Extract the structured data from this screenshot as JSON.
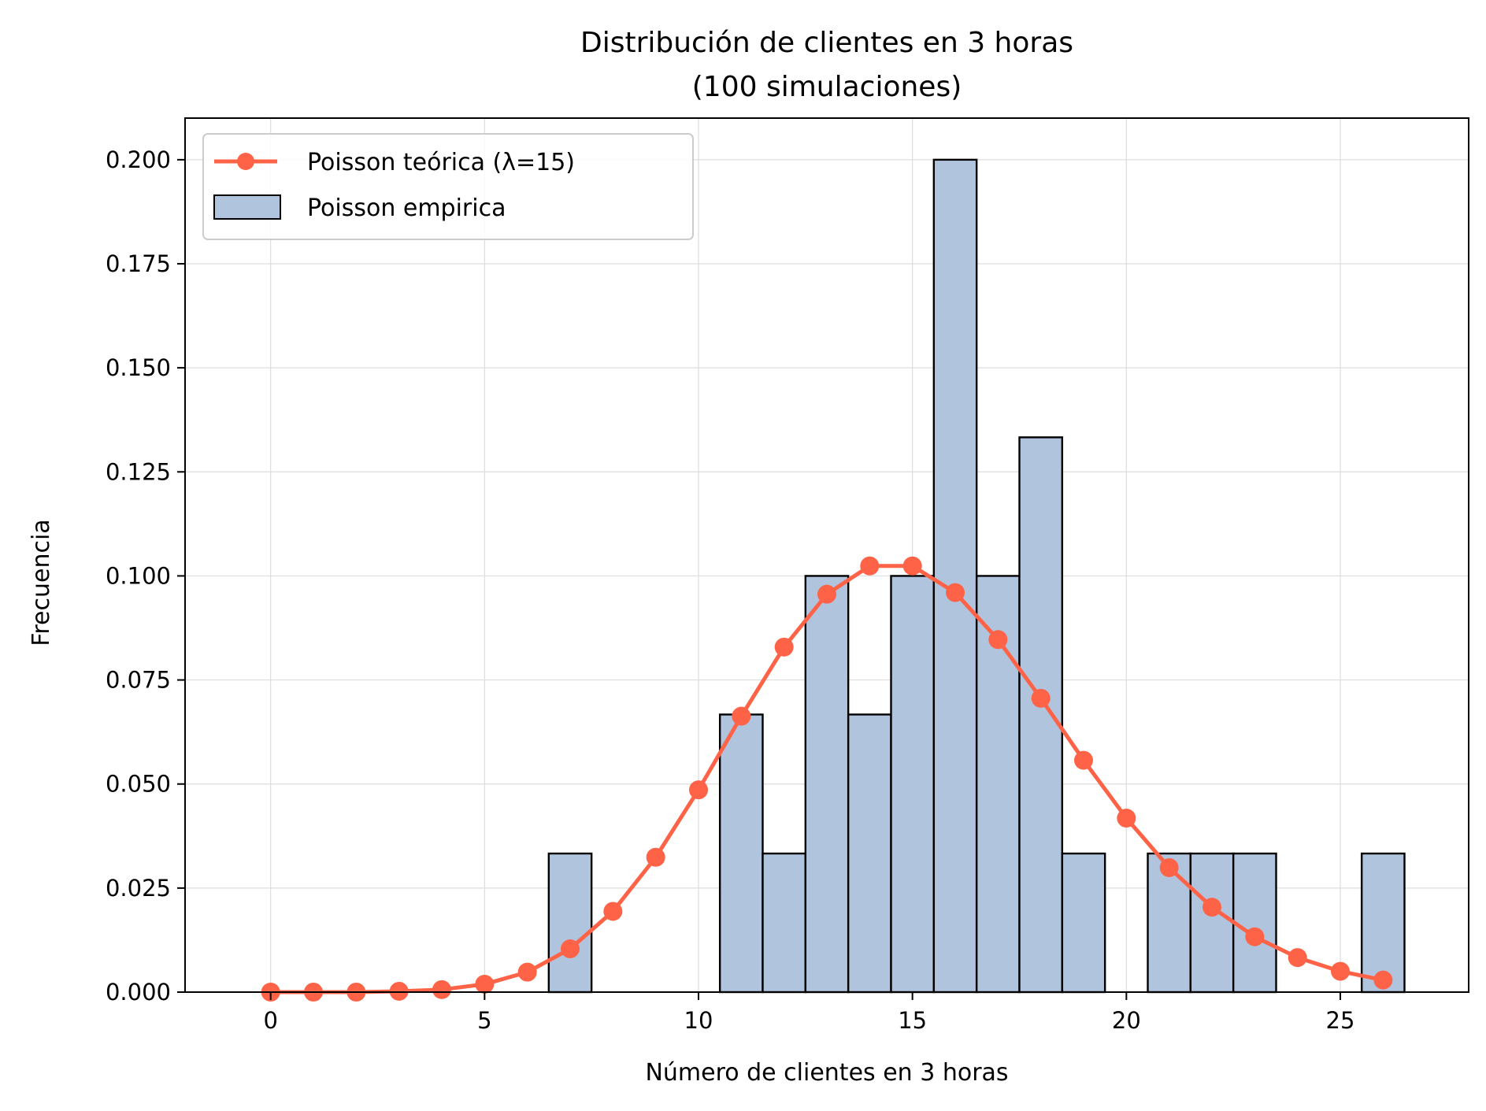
{
  "chart_data": {
    "type": "bar",
    "title": "Distribución de clientes en 3 horas\n(100 simulaciones)",
    "xlabel": "Número de clientes en 3 horas",
    "ylabel": "Frecuencia",
    "xlim": [
      -2.0,
      28.0
    ],
    "ylim": [
      0,
      0.21
    ],
    "xticks": [
      0,
      5,
      10,
      15,
      20,
      25
    ],
    "yticks": [
      0.0,
      0.025,
      0.05,
      0.075,
      0.1,
      0.125,
      0.15,
      0.175,
      0.2
    ],
    "xtick_labels": [
      "0",
      "5",
      "10",
      "15",
      "20",
      "25"
    ],
    "ytick_labels": [
      "0.000",
      "0.025",
      "0.050",
      "0.075",
      "0.100",
      "0.125",
      "0.150",
      "0.175",
      "0.200"
    ],
    "grid": true,
    "legend_position": "top-left",
    "colors": {
      "bars": "#b0c4de",
      "bar_edge": "#000000",
      "line": "#ff6347"
    },
    "series": [
      {
        "name": "Poisson empirica",
        "kind": "histogram",
        "x": [
          7,
          11,
          12,
          13,
          14,
          15,
          16,
          17,
          18,
          19,
          21,
          22,
          23,
          26
        ],
        "values": [
          0.0333,
          0.0667,
          0.0333,
          0.1,
          0.0667,
          0.1,
          0.2,
          0.1,
          0.1333,
          0.0333,
          0.0333,
          0.0333,
          0.0333,
          0.0333
        ]
      },
      {
        "name": "Poisson teórica (λ=15)",
        "kind": "line",
        "x": [
          0,
          1,
          2,
          3,
          4,
          5,
          6,
          7,
          8,
          9,
          10,
          11,
          12,
          13,
          14,
          15,
          16,
          17,
          18,
          19,
          20,
          21,
          22,
          23,
          24,
          25,
          26
        ],
        "values": [
          0.0,
          0.0,
          0.0,
          0.0002,
          0.0006,
          0.0019,
          0.0048,
          0.0104,
          0.0194,
          0.0324,
          0.0486,
          0.0663,
          0.0829,
          0.0956,
          0.1024,
          0.1024,
          0.096,
          0.0847,
          0.0706,
          0.0557,
          0.0418,
          0.0299,
          0.0204,
          0.0133,
          0.0083,
          0.005,
          0.0029
        ]
      }
    ]
  }
}
